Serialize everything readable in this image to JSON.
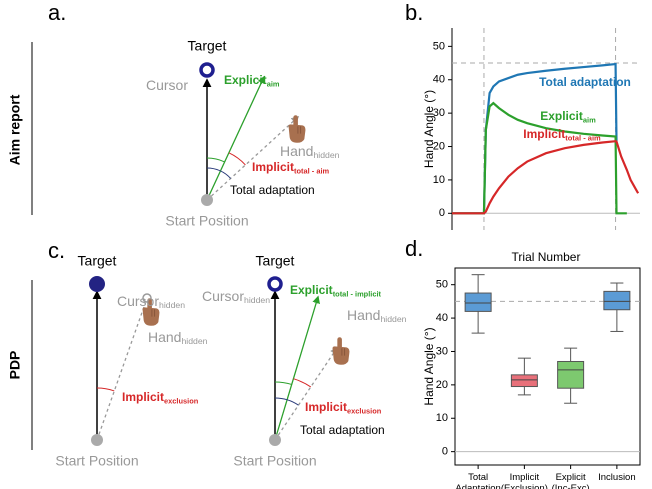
{
  "figure": {
    "panel_labels": [
      "a.",
      "b.",
      "c.",
      "d."
    ],
    "row_labels": [
      "Aim report",
      "PDP"
    ],
    "diagram_a": {
      "target": "Target",
      "cursor": {
        "text": "Cursor"
      },
      "explicit": {
        "text": "Explicit",
        "sub": "aim"
      },
      "hand": {
        "text": "Hand",
        "sub": "hidden"
      },
      "implicit": {
        "text": "Implicit",
        "sub": "total - aim"
      },
      "total": "Total adaptation",
      "start": "Start Position"
    },
    "diagram_c_left": {
      "target": "Target",
      "cursor": {
        "text": "Cursor",
        "sub": "hidden"
      },
      "hand": {
        "text": "Hand",
        "sub": "hidden"
      },
      "implicit": {
        "text": "Implicit",
        "sub": "exclusion"
      },
      "start": "Start Position"
    },
    "diagram_c_right": {
      "target": "Target",
      "cursor": {
        "text": "Cursor",
        "sub": "hidden"
      },
      "explicit": {
        "text": "Explicit",
        "sub": "total - implicit"
      },
      "hand": {
        "text": "Hand",
        "sub": "hidden"
      },
      "implicit": {
        "text": "Implicit",
        "sub": "exclusion"
      },
      "total": "Total adaptation",
      "start": "Start Position"
    }
  },
  "chart_data": [
    {
      "type": "line",
      "xlabel": "Trial Number",
      "ylabel": "Hand Angle (°)",
      "x": [
        0,
        10,
        17,
        18,
        20,
        22,
        25,
        30,
        35,
        40,
        50,
        60,
        70,
        80,
        87,
        87.5,
        90,
        93,
        95,
        99
      ],
      "xlim": [
        0,
        100
      ],
      "ylim": [
        -5,
        55.5
      ],
      "yticks": [
        0,
        10,
        20,
        30,
        40,
        50
      ],
      "hlines": [
        45
      ],
      "vlines": [
        17,
        87
      ],
      "series": [
        {
          "name": "Total adaptation",
          "color": "#1f77b4",
          "values": [
            0,
            0,
            0,
            25,
            36,
            38,
            39.5,
            40.5,
            41.5,
            42,
            42.7,
            43.3,
            43.8,
            44.3,
            44.7,
            21.6,
            null,
            null,
            null,
            null
          ]
        },
        {
          "name": "Explicit",
          "name_sub": "aim",
          "color": "#2ca02c",
          "values": [
            0,
            0,
            0,
            25,
            32,
            33,
            31.5,
            29.5,
            28,
            27,
            25.5,
            24.5,
            23.8,
            23.3,
            23,
            0,
            0,
            0,
            null,
            null
          ]
        },
        {
          "name": "Implicit",
          "name_sub": "total - aim",
          "color": "#d62728",
          "values": [
            0,
            0,
            0,
            0.5,
            3,
            5,
            7.5,
            11,
            13.5,
            15.5,
            18,
            19.5,
            20.5,
            21.2,
            21.6,
            21.5,
            17,
            13,
            10,
            6
          ]
        }
      ]
    },
    {
      "type": "box",
      "ylabel": "Hand Angle (°)",
      "categories": [
        "Total\nAdaptation",
        "Implicit\n(Exclusion)",
        "Explicit\n(Inc-Exc)",
        "Inclusion"
      ],
      "colors": [
        "#5b9bd5",
        "#e8707a",
        "#7dc96f",
        "#5b9bd5"
      ],
      "ylim": [
        -4,
        55
      ],
      "yticks": [
        0,
        10,
        20,
        30,
        40,
        50
      ],
      "hlines": [
        45
      ],
      "boxes": [
        {
          "whislo": 35.5,
          "q1": 42,
          "med": 44.5,
          "q3": 47.5,
          "whishi": 53
        },
        {
          "whislo": 17,
          "q1": 19.5,
          "med": 21.5,
          "q3": 23,
          "whishi": 28
        },
        {
          "whislo": 14.5,
          "q1": 19,
          "med": 24.5,
          "q3": 27,
          "whishi": 31
        },
        {
          "whislo": 36,
          "q1": 42.5,
          "med": 45,
          "q3": 48,
          "whishi": 50.5
        }
      ]
    }
  ]
}
